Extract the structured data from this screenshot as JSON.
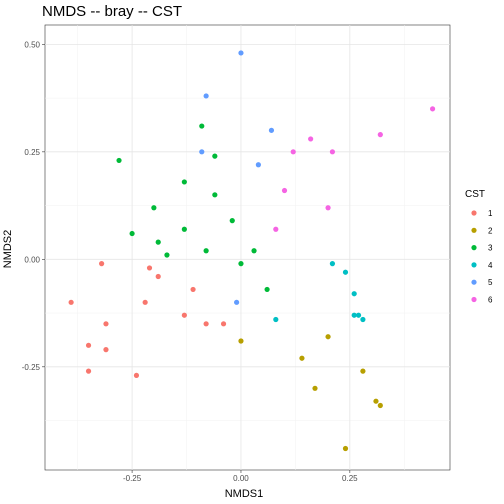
{
  "chart_data": {
    "type": "scatter",
    "title": "NMDS -- bray -- CST",
    "xlabel": "NMDS1",
    "ylabel": "NMDS2",
    "xlim": [
      -0.45,
      0.48
    ],
    "ylim": [
      -0.49,
      0.545
    ],
    "x_ticks": [
      -0.25,
      0.0,
      0.25
    ],
    "x_tick_labels": [
      "-0.25",
      "0.00",
      "0.25"
    ],
    "y_ticks": [
      0.5,
      0.25,
      0.0,
      -0.25
    ],
    "y_tick_labels": [
      "0.50",
      "0.25",
      "0.00",
      "-0.25"
    ],
    "grid": true,
    "panel_background": "#EBEBEB",
    "legend": {
      "title": "CST",
      "position": "right"
    },
    "series": [
      {
        "name": "1",
        "color": "#F8766D",
        "points": [
          [
            -0.39,
            -0.1
          ],
          [
            -0.32,
            -0.01
          ],
          [
            -0.21,
            -0.02
          ],
          [
            -0.19,
            -0.04
          ],
          [
            -0.11,
            -0.07
          ],
          [
            -0.22,
            -0.1
          ],
          [
            -0.35,
            -0.2
          ],
          [
            -0.31,
            -0.15
          ],
          [
            -0.31,
            -0.21
          ],
          [
            -0.13,
            -0.13
          ],
          [
            -0.08,
            -0.15
          ],
          [
            -0.04,
            -0.15
          ],
          [
            -0.35,
            -0.26
          ],
          [
            -0.24,
            -0.27
          ]
        ]
      },
      {
        "name": "2",
        "color": "#B79F00",
        "points": [
          [
            0.0,
            -0.19
          ],
          [
            0.2,
            -0.18
          ],
          [
            0.14,
            -0.23
          ],
          [
            0.28,
            -0.26
          ],
          [
            0.17,
            -0.3
          ],
          [
            0.31,
            -0.33
          ],
          [
            0.32,
            -0.34
          ],
          [
            0.24,
            -0.44
          ]
        ]
      },
      {
        "name": "3",
        "color": "#00BA38",
        "points": [
          [
            -0.28,
            0.23
          ],
          [
            -0.09,
            0.31
          ],
          [
            -0.06,
            0.24
          ],
          [
            -0.13,
            0.18
          ],
          [
            -0.2,
            0.12
          ],
          [
            -0.06,
            0.15
          ],
          [
            -0.25,
            0.06
          ],
          [
            -0.19,
            0.04
          ],
          [
            -0.13,
            0.07
          ],
          [
            -0.02,
            0.09
          ],
          [
            -0.17,
            0.01
          ],
          [
            -0.08,
            0.02
          ],
          [
            0.03,
            0.02
          ],
          [
            0.0,
            -0.01
          ],
          [
            0.06,
            -0.07
          ]
        ]
      },
      {
        "name": "4",
        "color": "#00BFC4",
        "points": [
          [
            0.21,
            -0.01
          ],
          [
            0.24,
            -0.03
          ],
          [
            0.26,
            -0.08
          ],
          [
            0.26,
            -0.13
          ],
          [
            0.27,
            -0.13
          ],
          [
            0.28,
            -0.14
          ],
          [
            0.08,
            -0.14
          ]
        ]
      },
      {
        "name": "5",
        "color": "#619CFF",
        "points": [
          [
            0.0,
            0.48
          ],
          [
            -0.08,
            0.38
          ],
          [
            0.07,
            0.3
          ],
          [
            -0.09,
            0.25
          ],
          [
            0.04,
            0.22
          ],
          [
            -0.01,
            -0.1
          ]
        ]
      },
      {
        "name": "6",
        "color": "#F564E3",
        "points": [
          [
            0.44,
            0.35
          ],
          [
            0.32,
            0.29
          ],
          [
            0.16,
            0.28
          ],
          [
            0.12,
            0.25
          ],
          [
            0.21,
            0.25
          ],
          [
            0.1,
            0.16
          ],
          [
            0.2,
            0.12
          ],
          [
            0.08,
            0.07
          ]
        ]
      }
    ]
  }
}
